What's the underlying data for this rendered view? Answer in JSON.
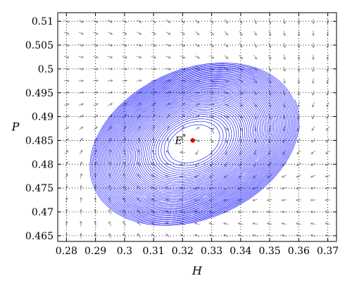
{
  "chart_data": {
    "type": "scatter",
    "title": "",
    "xlabel": "H",
    "ylabel": "P",
    "xlim": [
      0.277,
      0.373
    ],
    "ylim": [
      0.4638,
      0.5118
    ],
    "xticks": [
      0.28,
      0.29,
      0.3,
      0.31,
      0.32,
      0.33,
      0.34,
      0.35,
      0.36,
      0.37
    ],
    "xtick_labels": [
      "0.28",
      "0.29",
      "0.3",
      "0.31",
      "0.32",
      "0.33",
      "0.34",
      "0.35",
      "0.36",
      "0.37"
    ],
    "yticks": [
      0.465,
      0.47,
      0.475,
      0.48,
      0.485,
      0.49,
      0.495,
      0.5,
      0.505,
      0.51
    ],
    "ytick_labels": [
      "0.465",
      "0.47",
      "0.475",
      "0.48",
      "0.485",
      "0.49",
      "0.495",
      "0.5",
      "0.505",
      "0.51"
    ],
    "grid": true,
    "equilibrium": {
      "label": "E",
      "superscript": "*",
      "H": 0.3235,
      "P": 0.485,
      "color": "#e00000"
    },
    "trajectory": {
      "color": "#0000ff",
      "center": [
        0.3235,
        0.4845
      ],
      "outer_limit_cycle": {
        "H_range": [
          0.285,
          0.363
        ],
        "P_range": [
          0.468,
          0.5005
        ]
      },
      "inner_hole": {
        "H_range": [
          0.3165,
          0.3315
        ],
        "P_range": [
          0.4818,
          0.488
        ]
      }
    },
    "vector_field": {
      "color": "#8c8c8c",
      "spacing": {
        "H": 0.005,
        "P": 0.0025
      }
    }
  }
}
